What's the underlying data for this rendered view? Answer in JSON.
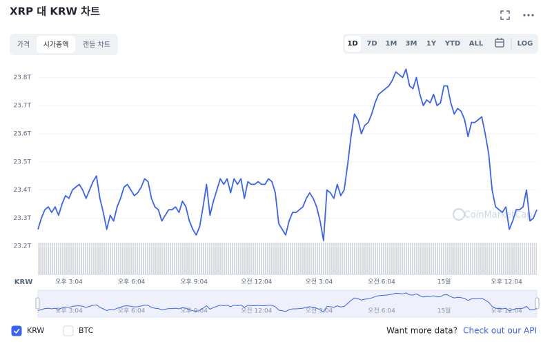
{
  "title": "XRP 대 KRW 차트",
  "tabs": [
    "가격",
    "시가총액",
    "캔들 차트"
  ],
  "ranges": [
    "1D",
    "7D",
    "1M",
    "3M",
    "1Y",
    "YTD",
    "ALL"
  ],
  "log_label": "LOG",
  "footer": {
    "question": "Want more data?",
    "link": "Check out our API"
  },
  "chart_data": {
    "type": "line",
    "x_label": "KRW",
    "watermark": "CoinMarketCap",
    "xtick_labels": [
      "오후 3:04",
      "오후 6:04",
      "오후 9:04",
      "오전 12:04",
      "오전 3:04",
      "오전 6:04",
      "15일",
      "오후 12:04"
    ],
    "ylim": [
      23.1,
      23.85
    ],
    "yticks": [
      {
        "value": 23.2,
        "label": "23.2T"
      },
      {
        "value": 23.3,
        "label": "23.3T"
      },
      {
        "value": 23.4,
        "label": "23.4T"
      },
      {
        "value": 23.5,
        "label": "23.5T"
      },
      {
        "value": 23.6,
        "label": "23.6T"
      },
      {
        "value": 23.7,
        "label": "23.7T"
      },
      {
        "value": 23.8,
        "label": "23.8T"
      }
    ],
    "grid": true,
    "legend": [
      {
        "name": "KRW",
        "checked": true
      },
      {
        "name": "BTC",
        "checked": false
      }
    ],
    "series": [
      {
        "name": "KRW",
        "color": "#3861fb",
        "values": [
          23.26,
          23.3,
          23.33,
          23.34,
          23.32,
          23.34,
          23.31,
          23.35,
          23.38,
          23.37,
          23.4,
          23.41,
          23.42,
          23.4,
          23.37,
          23.4,
          23.43,
          23.45,
          23.37,
          23.32,
          23.26,
          23.31,
          23.29,
          23.34,
          23.37,
          23.41,
          23.42,
          23.4,
          23.38,
          23.39,
          23.41,
          23.44,
          23.43,
          23.37,
          23.34,
          23.33,
          23.29,
          23.31,
          23.33,
          23.33,
          23.34,
          23.32,
          23.36,
          23.34,
          23.29,
          23.26,
          23.24,
          23.27,
          23.34,
          23.42,
          23.31,
          23.36,
          23.4,
          23.44,
          23.42,
          23.44,
          23.39,
          23.44,
          23.42,
          23.44,
          23.37,
          23.43,
          23.42,
          23.42,
          23.43,
          23.42,
          23.42,
          23.44,
          23.43,
          23.39,
          23.28,
          23.26,
          23.24,
          23.29,
          23.32,
          23.32,
          23.33,
          23.34,
          23.37,
          23.39,
          23.37,
          23.34,
          23.29,
          23.22,
          23.4,
          23.39,
          23.37,
          23.42,
          23.38,
          23.4,
          23.49,
          23.59,
          23.67,
          23.65,
          23.6,
          23.63,
          23.64,
          23.67,
          23.71,
          23.74,
          23.75,
          23.76,
          23.77,
          23.79,
          23.82,
          23.81,
          23.8,
          23.83,
          23.77,
          23.76,
          23.8,
          23.74,
          23.7,
          23.72,
          23.71,
          23.74,
          23.7,
          23.71,
          23.77,
          23.77,
          23.71,
          23.67,
          23.69,
          23.68,
          23.65,
          23.59,
          23.64,
          23.64,
          23.65,
          23.66,
          23.6,
          23.53,
          23.4,
          23.34,
          23.33,
          23.32,
          23.34,
          23.26,
          23.29,
          23.33,
          23.33,
          23.34,
          23.4,
          23.29,
          23.3,
          23.33
        ]
      }
    ]
  }
}
